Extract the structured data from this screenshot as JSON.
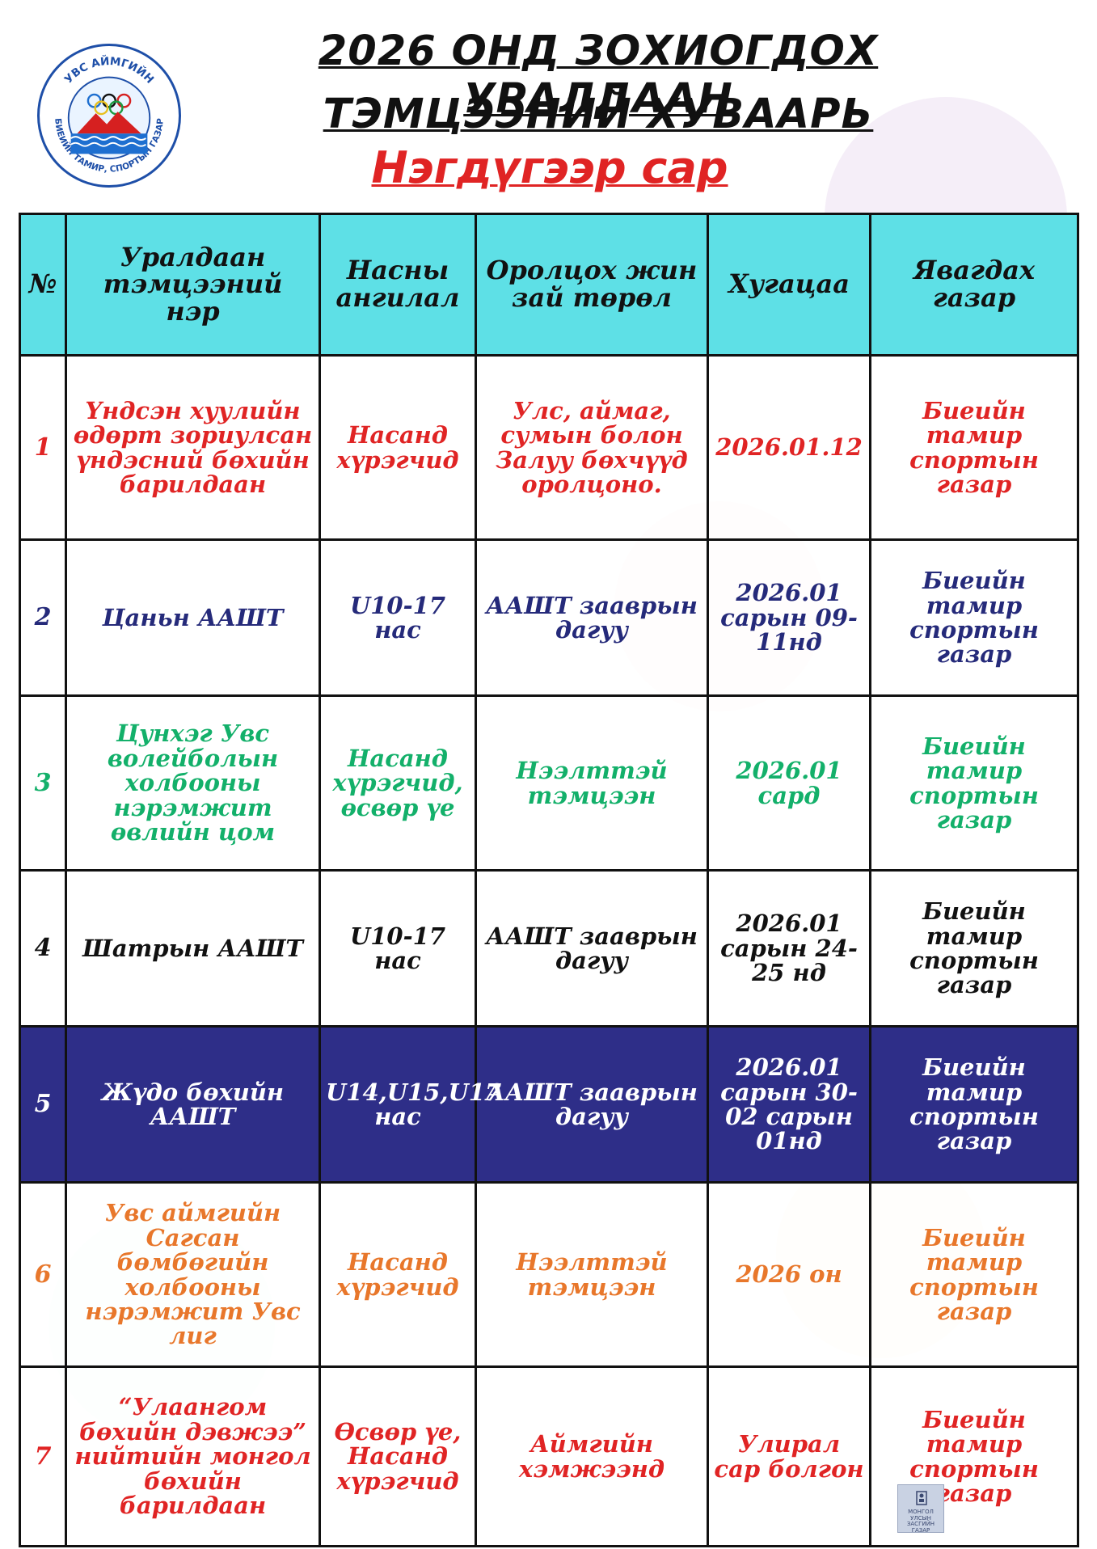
{
  "header": {
    "logo_text_top": "УВС АЙМГИЙН",
    "logo_text_bottom": "БИЕИЙН ТАМИР, СПОРТЫН ГАЗАР",
    "title_line1": "2026 ОНД ЗОХИОГДОХ УРАЛДААН",
    "title_line2": "ТЭМЦЭЭНИЙ ХУВААРЬ",
    "subtitle": "Нэгдүгээр сар"
  },
  "table": {
    "headers": {
      "num": "№",
      "name": "Уралдаан тэмцээний нэр",
      "age": "Насны ангилал",
      "weight": "Оролцох жин зай төрөл",
      "date": "Хугацаа",
      "place": "Явагдах газар"
    },
    "rows": [
      {
        "num": "1",
        "name": "Үндсэн хуулийн өдөрт зориулсан үндэсний бөхийн барилдаан",
        "age": "Насанд хүрэгчид",
        "weight": "Улс, аймаг, сумын болон Залуу бөхчүүд оролцоно.",
        "date": "2026.01.12",
        "place": "Биеийн тамир спортын газар"
      },
      {
        "num": "2",
        "name": "Цаньн ААШТ",
        "age": "U10-17 нас",
        "weight": "ААШТ зааврын дагуу",
        "date": "2026.01 сарын 09-11нд",
        "place": "Биеийн тамир спортын газар"
      },
      {
        "num": "3",
        "name": "Цунхэг Увс волейболын холбооны нэрэмжит өвлийн цом",
        "age": "Насанд хүрэгчид, өсвөр үе",
        "weight": "Нээлттэй тэмцээн",
        "date": "2026.01 сард",
        "place": "Биеийн тамир спортын газар"
      },
      {
        "num": "4",
        "name": "Шатрын ААШТ",
        "age": "U10-17 нас",
        "weight": "ААШТ зааврын дагуу",
        "date": "2026.01 сарын 24-25 нд",
        "place": "Биеийн тамир спортын газар"
      },
      {
        "num": "5",
        "name": "Жүдо бөхийн ААШТ",
        "age": "U14,U15,U17 нас",
        "weight": "ААШТ зааврын дагуу",
        "date": "2026.01 сарын 30- 02 сарын 01нд",
        "place": "Биеийн тамир спортын газар"
      },
      {
        "num": "6",
        "name": "Увс аймгийн Сагсан бөмбөгийн холбооны нэрэмжит Увс лиг",
        "age": "Насанд хүрэгчид",
        "weight": "Нээлттэй тэмцээн",
        "date": "2026 он",
        "place": "Биеийн тамир спортын газар"
      },
      {
        "num": "7",
        "name": "“Улаангом бөхийн дэвжээ” нийтийн монгол бөхийн барилдаан",
        "age": "Өсвөр үе, Насанд хүрэгчид",
        "weight": "Аймгийн хэмжээнд",
        "date": "Улирал сар болгон",
        "place": "Биеийн тамир спортын газар"
      }
    ]
  },
  "stamp": {
    "text": "МОНГОЛ УЛСЫН ЗАСГИЙН ГАЗАР"
  },
  "colors": {
    "header_bg": "#5ee0e6",
    "row1": "#e02424",
    "row2": "#252a7a",
    "row3": "#13b06a",
    "row4": "#111111",
    "row5_bg": "#2e2e88",
    "row5_text": "#ffffff",
    "row6": "#e8772b",
    "row7": "#e02424"
  }
}
